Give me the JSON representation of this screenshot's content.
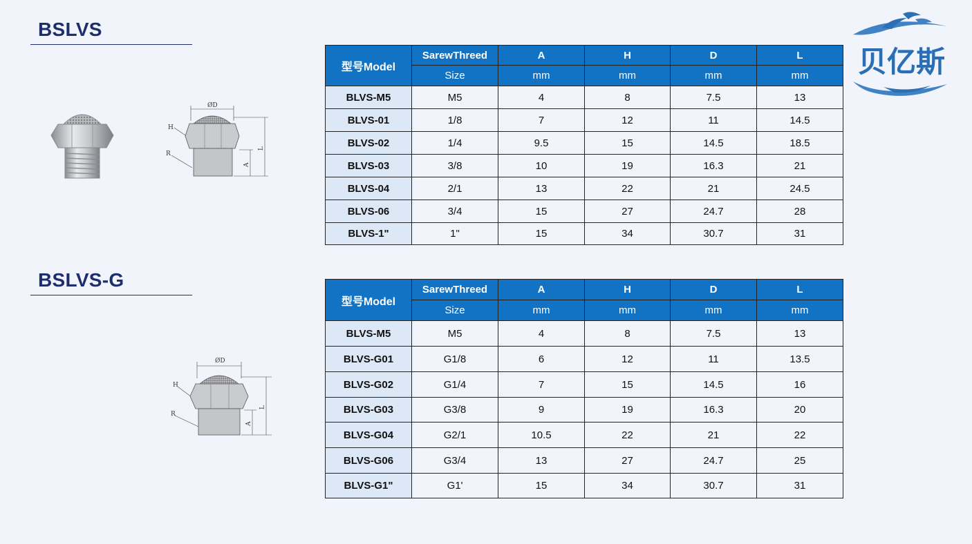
{
  "colors": {
    "header_blue": "#1273c4",
    "title_navy": "#1d2e6e",
    "model_cell_bg": "#dde8f6",
    "page_bg": "#f1f4fa"
  },
  "brand": {
    "logo_text": "贝亿斯"
  },
  "drawing_labels": {
    "diameter": "ØD",
    "h": "H",
    "r": "R",
    "a": "A",
    "l": "L"
  },
  "sections": [
    {
      "title": "BSLVS",
      "columns": {
        "model": "型号Model",
        "thread": "SarewThreed",
        "thread_sub": "Size",
        "a": "A",
        "a_unit": "mm",
        "h": "H",
        "h_unit": "mm",
        "d": "D",
        "d_unit": "mm",
        "l": "L",
        "l_unit": "mm"
      },
      "rows": [
        {
          "model": "BLVS-M5",
          "size": "M5",
          "a": "4",
          "h": "8",
          "d": "7.5",
          "l": "13"
        },
        {
          "model": "BLVS-01",
          "size": "1/8",
          "a": "7",
          "h": "12",
          "d": "11",
          "l": "14.5"
        },
        {
          "model": "BLVS-02",
          "size": "1/4",
          "a": "9.5",
          "h": "15",
          "d": "14.5",
          "l": "18.5"
        },
        {
          "model": "BLVS-03",
          "size": "3/8",
          "a": "10",
          "h": "19",
          "d": "16.3",
          "l": "21"
        },
        {
          "model": "BLVS-04",
          "size": "2/1",
          "a": "13",
          "h": "22",
          "d": "21",
          "l": "24.5"
        },
        {
          "model": "BLVS-06",
          "size": "3/4",
          "a": "15",
          "h": "27",
          "d": "24.7",
          "l": "28"
        },
        {
          "model": "BLVS-1\"",
          "size": "1\"",
          "a": "15",
          "h": "34",
          "d": "30.7",
          "l": "31"
        }
      ]
    },
    {
      "title": "BSLVS-G",
      "columns": {
        "model": "型号Model",
        "thread": "SarewThreed",
        "thread_sub": "Size",
        "a": "A",
        "a_unit": "mm",
        "h": "H",
        "h_unit": "mm",
        "d": "D",
        "d_unit": "mm",
        "l": "L",
        "l_unit": "mm"
      },
      "rows": [
        {
          "model": "BLVS-M5",
          "size": "M5",
          "a": "4",
          "h": "8",
          "d": "7.5",
          "l": "13"
        },
        {
          "model": "BLVS-G01",
          "size": "G1/8",
          "a": "6",
          "h": "12",
          "d": "11",
          "l": "13.5"
        },
        {
          "model": "BLVS-G02",
          "size": "G1/4",
          "a": "7",
          "h": "15",
          "d": "14.5",
          "l": "16"
        },
        {
          "model": "BLVS-G03",
          "size": "G3/8",
          "a": "9",
          "h": "19",
          "d": "16.3",
          "l": "20"
        },
        {
          "model": "BLVS-G04",
          "size": "G2/1",
          "a": "10.5",
          "h": "22",
          "d": "21",
          "l": "22"
        },
        {
          "model": "BLVS-G06",
          "size": "G3/4",
          "a": "13",
          "h": "27",
          "d": "24.7",
          "l": "25"
        },
        {
          "model": "BLVS-G1\"",
          "size": "G1'",
          "a": "15",
          "h": "34",
          "d": "30.7",
          "l": "31"
        }
      ]
    }
  ]
}
